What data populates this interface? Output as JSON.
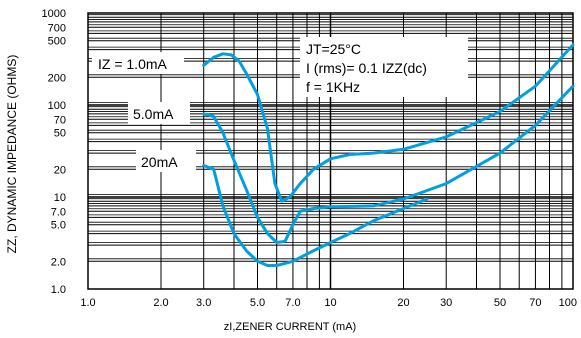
{
  "chart_data": {
    "type": "line",
    "xlabel": "zI,ZENER CURRENT (mA)",
    "ylabel": "ZZ, DYNAMIC IMPEDANCE (OHMS)",
    "xscale": "log",
    "yscale": "log",
    "xlim": [
      1,
      100
    ],
    "ylim": [
      1,
      1000
    ],
    "x_ticks": [
      "1.0",
      "2.0",
      "3.0",
      "5.0",
      "7.0",
      "10",
      "20",
      "30",
      "50",
      "70",
      "100"
    ],
    "x_tick_values": [
      1,
      2,
      3,
      5,
      7,
      10,
      20,
      30,
      50,
      70,
      100
    ],
    "y_ticks": [
      "1000",
      "700",
      "500",
      "200",
      "100",
      "70",
      "50",
      "20",
      "10",
      "7.0",
      "5.0",
      "2.0",
      "1.0"
    ],
    "y_tick_values": [
      1000,
      700,
      500,
      200,
      100,
      70,
      50,
      20,
      10,
      7,
      5,
      2,
      1
    ],
    "grid": true,
    "conditions": [
      "JT=25°C",
      "I (rms)= 0.1 IZZ(dc)",
      "f = 1KHz"
    ],
    "curve_labels": [
      "IZ = 1.0mA",
      "5.0mA",
      "20mA"
    ],
    "series": [
      {
        "name": "IZ = 1.0mA",
        "x": [
          3,
          3.3,
          3.6,
          3.9,
          4.2,
          4.5,
          5,
          5.5,
          5.9,
          6.3,
          6.8,
          7.5,
          8.5,
          10,
          12,
          15,
          20,
          30,
          50,
          70,
          100
        ],
        "y": [
          270,
          330,
          360,
          350,
          300,
          220,
          130,
          55,
          14,
          9,
          10,
          14,
          20,
          26,
          29,
          30,
          33,
          45,
          85,
          160,
          450
        ]
      },
      {
        "name": "5.0mA",
        "x": [
          3,
          3.3,
          3.6,
          4,
          4.5,
          5,
          5.5,
          6,
          6.5,
          7,
          7.5,
          8.5,
          10,
          15,
          20,
          30,
          50,
          70,
          100
        ],
        "y": [
          80,
          75,
          50,
          25,
          12,
          6,
          4,
          3.2,
          3.3,
          5,
          7,
          7.5,
          7.8,
          8,
          9.5,
          14,
          30,
          60,
          160
        ]
      },
      {
        "name": "20mA",
        "x": [
          3,
          3.3,
          3.6,
          4,
          4.5,
          5,
          5.5,
          6,
          7,
          8,
          9,
          10,
          12,
          15,
          20,
          25
        ],
        "y": [
          22,
          20,
          8,
          4,
          2.6,
          2,
          1.8,
          1.8,
          2,
          2.4,
          2.8,
          3.2,
          4,
          5.5,
          7.5,
          9.5
        ]
      }
    ]
  }
}
